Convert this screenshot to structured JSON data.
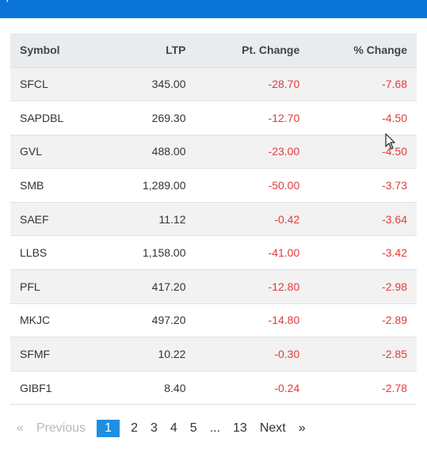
{
  "header": {
    "partial_glyph": "'"
  },
  "table": {
    "columns": [
      "Symbol",
      "LTP",
      "Pt. Change",
      "% Change"
    ],
    "rows": [
      {
        "symbol": "SFCL",
        "ltp": "345.00",
        "pt_change": "-28.70",
        "pct_change": "-7.68"
      },
      {
        "symbol": "SAPDBL",
        "ltp": "269.30",
        "pt_change": "-12.70",
        "pct_change": "-4.50"
      },
      {
        "symbol": "GVL",
        "ltp": "488.00",
        "pt_change": "-23.00",
        "pct_change": "-4.50"
      },
      {
        "symbol": "SMB",
        "ltp": "1,289.00",
        "pt_change": "-50.00",
        "pct_change": "-3.73"
      },
      {
        "symbol": "SAEF",
        "ltp": "11.12",
        "pt_change": "-0.42",
        "pct_change": "-3.64"
      },
      {
        "symbol": "LLBS",
        "ltp": "1,158.00",
        "pt_change": "-41.00",
        "pct_change": "-3.42"
      },
      {
        "symbol": "PFL",
        "ltp": "417.20",
        "pt_change": "-12.80",
        "pct_change": "-2.98"
      },
      {
        "symbol": "MKJC",
        "ltp": "497.20",
        "pt_change": "-14.80",
        "pct_change": "-2.89"
      },
      {
        "symbol": "SFMF",
        "ltp": "10.22",
        "pt_change": "-0.30",
        "pct_change": "-2.85"
      },
      {
        "symbol": "GIBF1",
        "ltp": "8.40",
        "pt_change": "-0.24",
        "pct_change": "-2.78"
      }
    ]
  },
  "pagination": {
    "prev_arrow": "«",
    "prev_label": "Previous",
    "pages": [
      "1",
      "2",
      "3",
      "4",
      "5",
      "...",
      "13"
    ],
    "active_page": "1",
    "next_label": "Next",
    "next_arrow": "»"
  },
  "colors": {
    "header_bar": "#0a74d8",
    "negative": "#e23b3b",
    "active_page": "#1e8fe1"
  }
}
